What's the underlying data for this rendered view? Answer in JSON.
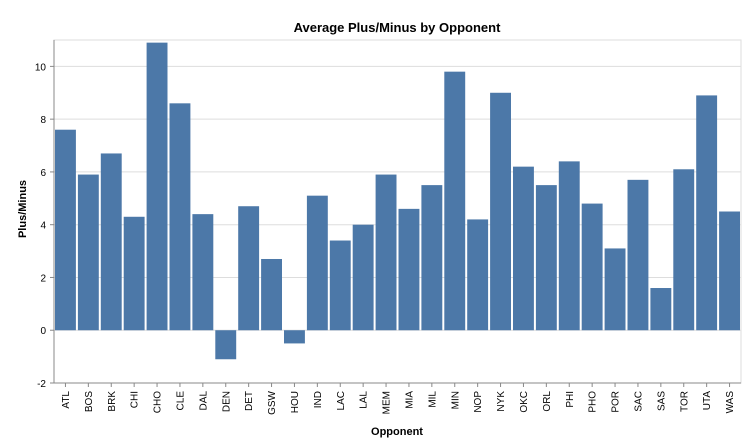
{
  "chart_data": {
    "type": "bar",
    "title": "Average Plus/Minus by Opponent",
    "xlabel": "Opponent",
    "ylabel": "Plus/Minus",
    "ylim": [
      -2,
      11
    ],
    "yticks": [
      -2,
      0,
      2,
      4,
      6,
      8,
      10
    ],
    "grid": true,
    "bar_color": "#4c78a8",
    "categories": [
      "ATL",
      "BOS",
      "BRK",
      "CHI",
      "CHO",
      "CLE",
      "DAL",
      "DEN",
      "DET",
      "GSW",
      "HOU",
      "IND",
      "LAC",
      "LAL",
      "MEM",
      "MIA",
      "MIL",
      "MIN",
      "NOP",
      "NYK",
      "OKC",
      "ORL",
      "PHI",
      "PHO",
      "POR",
      "SAC",
      "SAS",
      "TOR",
      "UTA",
      "WAS"
    ],
    "values": [
      7.6,
      5.9,
      6.7,
      4.3,
      10.9,
      8.6,
      4.4,
      -1.1,
      4.7,
      2.7,
      -0.5,
      5.1,
      3.4,
      4.0,
      5.9,
      4.6,
      5.5,
      9.8,
      4.2,
      9.0,
      6.2,
      5.5,
      6.4,
      4.8,
      3.1,
      5.7,
      1.6,
      6.1,
      8.9,
      4.5
    ]
  }
}
